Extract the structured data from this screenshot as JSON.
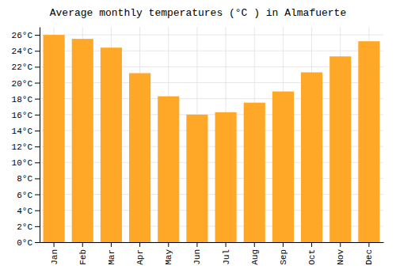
{
  "chart_data": {
    "type": "bar",
    "title": "Average monthly temperatures (°C ) in Almafuerte",
    "categories": [
      "Jan",
      "Feb",
      "Mar",
      "Apr",
      "May",
      "Jun",
      "Jul",
      "Aug",
      "Sep",
      "Oct",
      "Nov",
      "Dec"
    ],
    "values": [
      26.0,
      25.5,
      24.4,
      21.2,
      18.3,
      16.0,
      16.3,
      17.5,
      18.9,
      21.3,
      23.3,
      25.2
    ],
    "color": "#FFA726",
    "ylim": [
      0,
      27
    ],
    "yticks": [
      {
        "value": 0,
        "label": "0°C"
      },
      {
        "value": 2,
        "label": "2°C"
      },
      {
        "value": 4,
        "label": "4°C"
      },
      {
        "value": 6,
        "label": "6°C"
      },
      {
        "value": 8,
        "label": "8°C"
      },
      {
        "value": 10,
        "label": "10°C"
      },
      {
        "value": 12,
        "label": "12°C"
      },
      {
        "value": 14,
        "label": "14°C"
      },
      {
        "value": 16,
        "label": "16°C"
      },
      {
        "value": 18,
        "label": "18°C"
      },
      {
        "value": 20,
        "label": "20°C"
      },
      {
        "value": 22,
        "label": "22°C"
      },
      {
        "value": 24,
        "label": "24°C"
      },
      {
        "value": 26,
        "label": "26°C"
      }
    ],
    "grid": true
  }
}
